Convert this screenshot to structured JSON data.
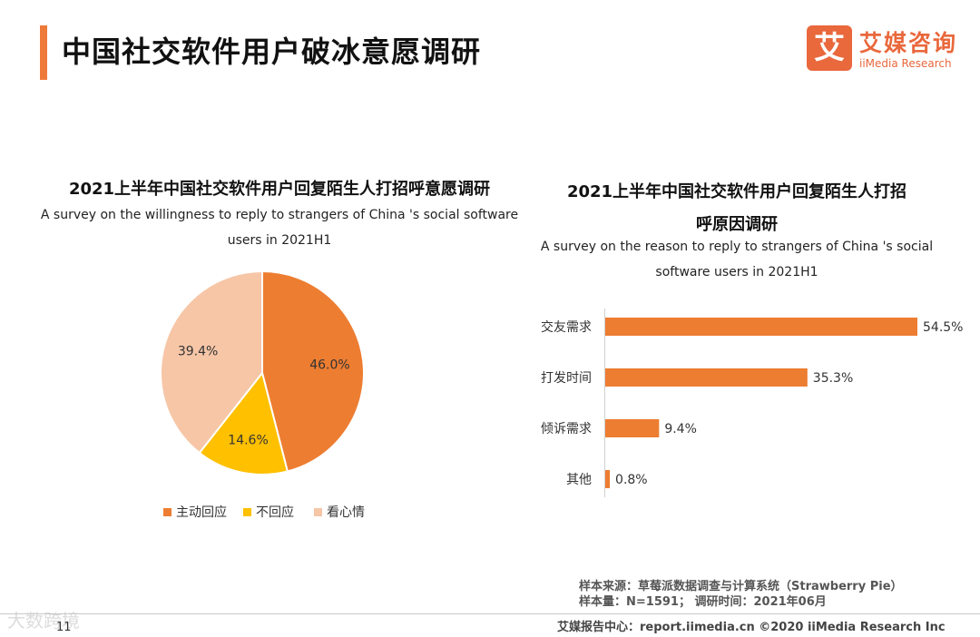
{
  "header": {
    "title": "中国社交软件用户破冰意愿调研",
    "logo_mark": "艾",
    "logo_cn": "艾媒咨询",
    "logo_en": "iiMedia Research"
  },
  "colors": {
    "accent": "#ee7a3a",
    "orange": "#ed7d31",
    "yellow": "#ffc000",
    "peach": "#f6c6a7"
  },
  "chart_data": [
    {
      "type": "pie",
      "title": "2021上半年中国社交软件用户回复陌生人打招呼意愿调研",
      "subtitle_line1": "A survey on the willingness to reply to strangers  of China 's social software",
      "subtitle_line2": "users in 2021H1",
      "slices": [
        {
          "label": "主动回应",
          "value": 46.0,
          "display": "46.0%",
          "color": "#ed7d31"
        },
        {
          "label": "不回应",
          "value": 14.6,
          "display": "14.6%",
          "color": "#ffc000"
        },
        {
          "label": "看心情",
          "value": 39.4,
          "display": "39.4%",
          "color": "#f6c6a7"
        }
      ],
      "legend_position": "bottom"
    },
    {
      "type": "bar",
      "orientation": "horizontal",
      "title_line1": "2021上半年中国社交软件用户回复陌生人打招",
      "title_line2": "呼原因调研",
      "subtitle_line1": "A survey on the reason to reply to strangers  of China 's social",
      "subtitle_line2": "software users in 2021H1",
      "categories": [
        "交友需求",
        "打发时间",
        "倾诉需求",
        "其他"
      ],
      "values": [
        54.5,
        35.3,
        9.4,
        0.8
      ],
      "labels": [
        "54.5%",
        "35.3%",
        "9.4%",
        "0.8%"
      ],
      "color": "#ed7d31",
      "xlim": [
        0,
        54.5
      ]
    }
  ],
  "footer": {
    "source_line1": "样本来源：草莓派数据调查与计算系统（Strawberry Pie）",
    "source_line2": "样本量：N=1591；  调研时间：2021年06月",
    "credit": "艾媒报告中心：report.iimedia.cn   ©2020  iiMedia Research  Inc",
    "page_number": "11",
    "watermark": "大数跨境"
  }
}
